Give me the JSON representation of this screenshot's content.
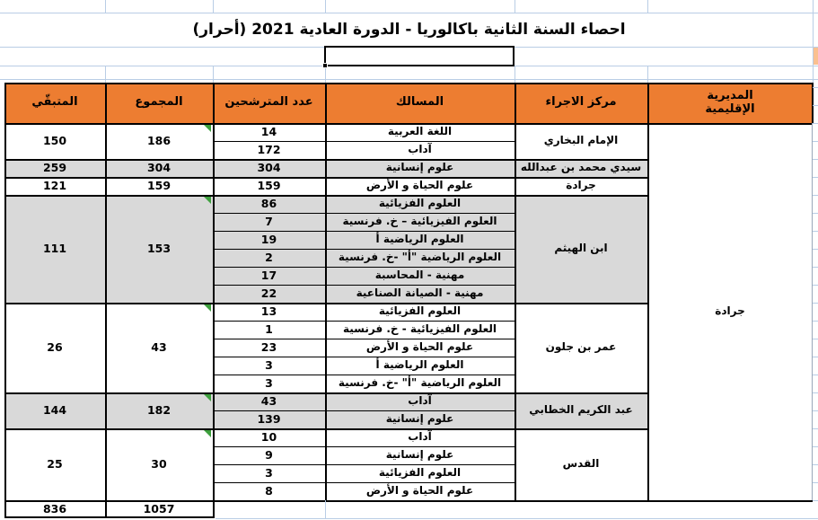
{
  "title": "احصاء السنة الثانية باكالوريا - الدورة العادية 2021 (أحرار)",
  "colors": {
    "header_bg": "#ED7D31",
    "band_gray": "#D9D9D9",
    "band_white": "#FFFFFF",
    "grid_blue": "#B9CDE5",
    "triangle_green": "#3DA03D",
    "peach_cell": "#FAC090",
    "border_black": "#000000"
  },
  "selected_cell": {
    "value": ""
  },
  "header": {
    "mudiriyya": "المديرية\nالإقليمية",
    "markaz": "مركز الاجراء",
    "masalik": "المسالك",
    "adad": "عدد المترشحين",
    "majmou": "المجموع",
    "mutabaqqi": "المتبقّي"
  },
  "directorate": "جرادة",
  "groups": [
    {
      "center": "الإمام البخاري",
      "shade": "white",
      "flag": true,
      "tracks": [
        {
          "name": "اللغة العربية",
          "count": "14"
        },
        {
          "name": "آداب",
          "count": "172"
        }
      ],
      "total": "186",
      "remaining": "150"
    },
    {
      "center": "سيدي محمد بن عبدالله",
      "shade": "gray",
      "flag": false,
      "tracks": [
        {
          "name": "علوم إنسانية",
          "count": "304"
        }
      ],
      "total": "304",
      "remaining": "259"
    },
    {
      "center": "جرادة",
      "shade": "white",
      "flag": false,
      "tracks": [
        {
          "name": "علوم الحياة و الأرض",
          "count": "159"
        }
      ],
      "total": "159",
      "remaining": "121"
    },
    {
      "center": "ابن الهيثم",
      "shade": "gray",
      "flag": true,
      "tracks": [
        {
          "name": "العلوم الفزيائية",
          "count": "86"
        },
        {
          "name": "العلوم الفيزيائية – خ. فرنسية",
          "count": "7"
        },
        {
          "name": "العلوم الرياضية أ",
          "count": "19"
        },
        {
          "name": "العلوم الرياضية \"أ\" -خ. فرنسية",
          "count": "2"
        },
        {
          "name": "مهنية - المحاسبة",
          "count": "17"
        },
        {
          "name": "مهنية - الصيانة الصناعية",
          "count": "22"
        }
      ],
      "total": "153",
      "remaining": "111"
    },
    {
      "center": "عمر بن جلون",
      "shade": "white",
      "flag": true,
      "tracks": [
        {
          "name": "العلوم الفزيائية",
          "count": "13"
        },
        {
          "name": "العلوم الفيزيائية - خ. فرنسية",
          "count": "1"
        },
        {
          "name": "علوم الحياة و الأرض",
          "count": "23"
        },
        {
          "name": "العلوم الرياضية أ",
          "count": "3"
        },
        {
          "name": "العلوم الرياضية \"أ\" -خ. فرنسية",
          "count": "3"
        }
      ],
      "total": "43",
      "remaining": "26"
    },
    {
      "center": "عبد الكريم الخطابي",
      "shade": "gray",
      "flag": true,
      "tracks": [
        {
          "name": "آداب",
          "count": "43"
        },
        {
          "name": "علوم إنسانية",
          "count": "139"
        }
      ],
      "total": "182",
      "remaining": "144"
    },
    {
      "center": "القدس",
      "shade": "white",
      "flag": true,
      "tracks": [
        {
          "name": "آداب",
          "count": "10"
        },
        {
          "name": "علوم إنسانية",
          "count": "9"
        },
        {
          "name": "العلوم الفزيائية",
          "count": "3"
        },
        {
          "name": "علوم الحياة و الأرض",
          "count": "8"
        }
      ],
      "total": "30",
      "remaining": "25"
    }
  ],
  "totals": {
    "total": "1057",
    "remaining": "836"
  }
}
